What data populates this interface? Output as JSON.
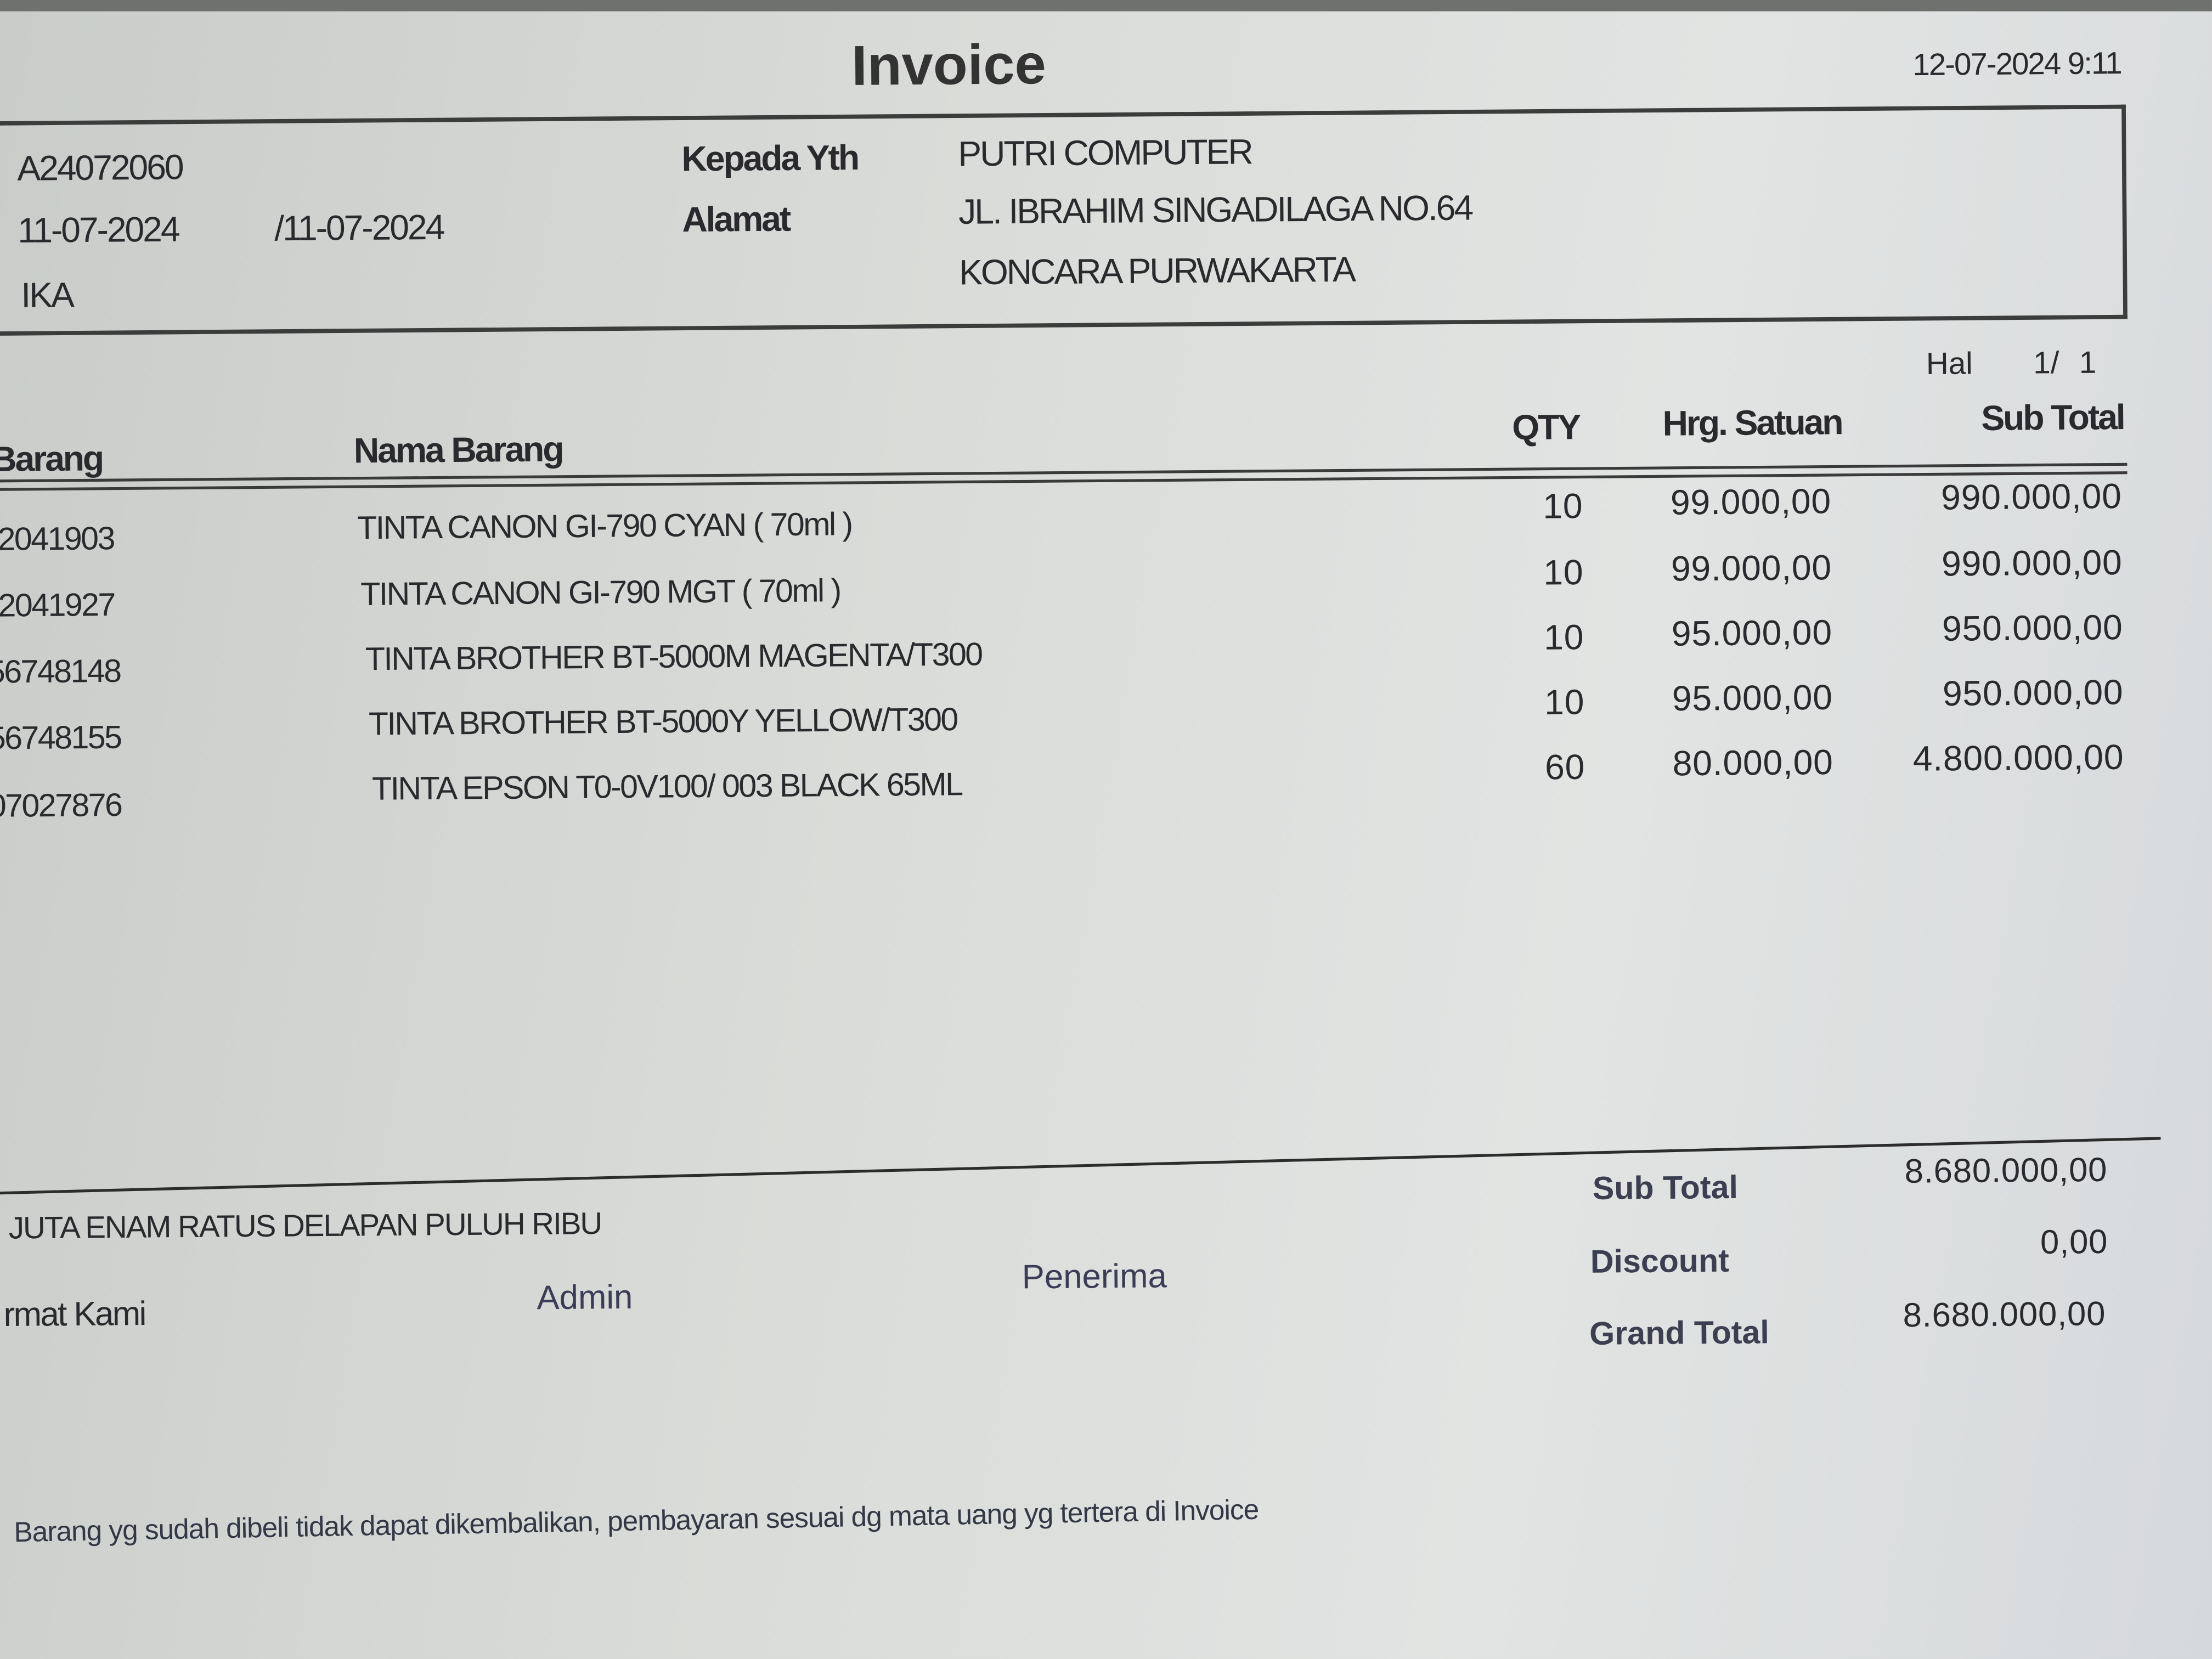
{
  "title": "Invoice",
  "print_datetime": "12-07-2024 9:11",
  "header": {
    "invoice_no": "A24072060",
    "date": "11-07-2024",
    "due_date": "/11-07-2024",
    "salesperson": "IKA",
    "to_label": "Kepada Yth",
    "to_value": "PUTRI COMPUTER",
    "address_label": "Alamat",
    "address_line1": "JL. IBRAHIM SINGADILAGA NO.64",
    "address_line2": "KONCARA PURWAKARTA"
  },
  "page": {
    "label": "Hal",
    "value": "1/  1"
  },
  "table": {
    "columns": [
      "Barang",
      "Nama Barang",
      "QTY",
      "Hrg. Satuan",
      "Sub Total"
    ],
    "rows": [
      {
        "code": "2041903",
        "name": "TINTA CANON GI-790 CYAN ( 70ml )",
        "qty": "10",
        "price": "99.000,00",
        "subtotal": "990.000,00"
      },
      {
        "code": "2041927",
        "name": "TINTA CANON GI-790 MGT ( 70ml )",
        "qty": "10",
        "price": "99.000,00",
        "subtotal": "990.000,00"
      },
      {
        "code": "56748148",
        "name": "TINTA BROTHER BT-5000M MAGENTA/T300",
        "qty": "10",
        "price": "95.000,00",
        "subtotal": "950.000,00"
      },
      {
        "code": "56748155",
        "name": "TINTA BROTHER BT-5000Y YELLOW/T300",
        "qty": "10",
        "price": "95.000,00",
        "subtotal": "950.000,00"
      },
      {
        "code": "07027876",
        "name": "TINTA EPSON T0-0V100/ 003 BLACK 65ML",
        "qty": "60",
        "price": "80.000,00",
        "subtotal": "4.800.000,00"
      }
    ]
  },
  "amount_words": "JUTA ENAM RATUS DELAPAN PULUH RIBU",
  "signatures": {
    "regards": "rmat Kami",
    "admin": "Admin",
    "receiver": "Penerima"
  },
  "totals": {
    "subtotal_label": "Sub Total",
    "subtotal": "8.680.000,00",
    "discount_label": "Discount",
    "discount": "0,00",
    "grand_total_label": "Grand Total",
    "grand_total": "8.680.000,00"
  },
  "footer_note": "Barang yg sudah dibeli tidak dapat dikembalikan, pembayaran sesuai dg mata uang yg tertera di Invoice"
}
